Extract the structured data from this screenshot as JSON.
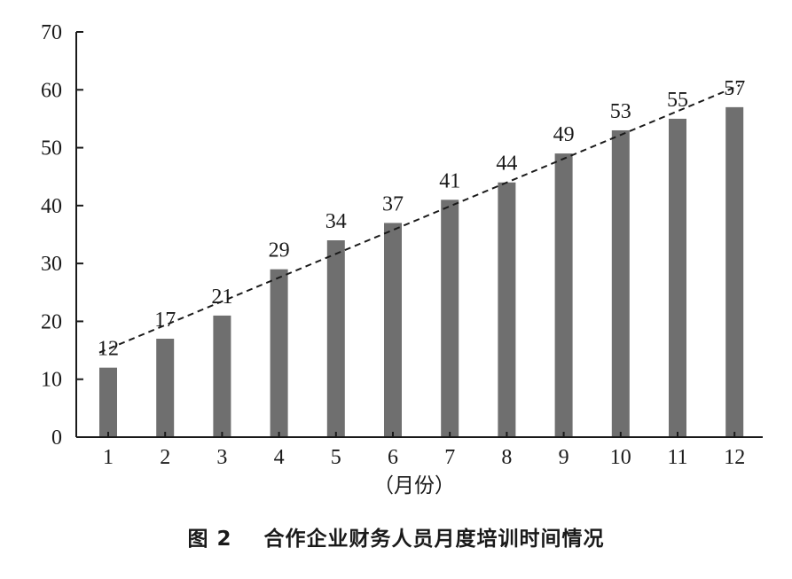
{
  "chart_data": {
    "type": "bar",
    "categories": [
      "1",
      "2",
      "3",
      "4",
      "5",
      "6",
      "7",
      "8",
      "9",
      "10",
      "11",
      "12"
    ],
    "values": [
      12,
      17,
      21,
      29,
      34,
      37,
      41,
      44,
      49,
      53,
      55,
      57
    ],
    "data_labels": [
      "12",
      "17",
      "21",
      "29",
      "34",
      "37",
      "41",
      "44",
      "49",
      "53",
      "55",
      "57"
    ],
    "xlabel": "（月份）",
    "ylabel": "",
    "ylim": [
      0,
      70
    ],
    "yticks": [
      0,
      10,
      20,
      30,
      40,
      50,
      60,
      70
    ],
    "grid": false,
    "trendline": {
      "style": "dashed",
      "start": 14.6,
      "end": 60.8
    },
    "bar_color": "#6f6f6f"
  },
  "caption": {
    "figure_number": "图 2",
    "title": "合作企业财务人员月度培训时间情况"
  }
}
